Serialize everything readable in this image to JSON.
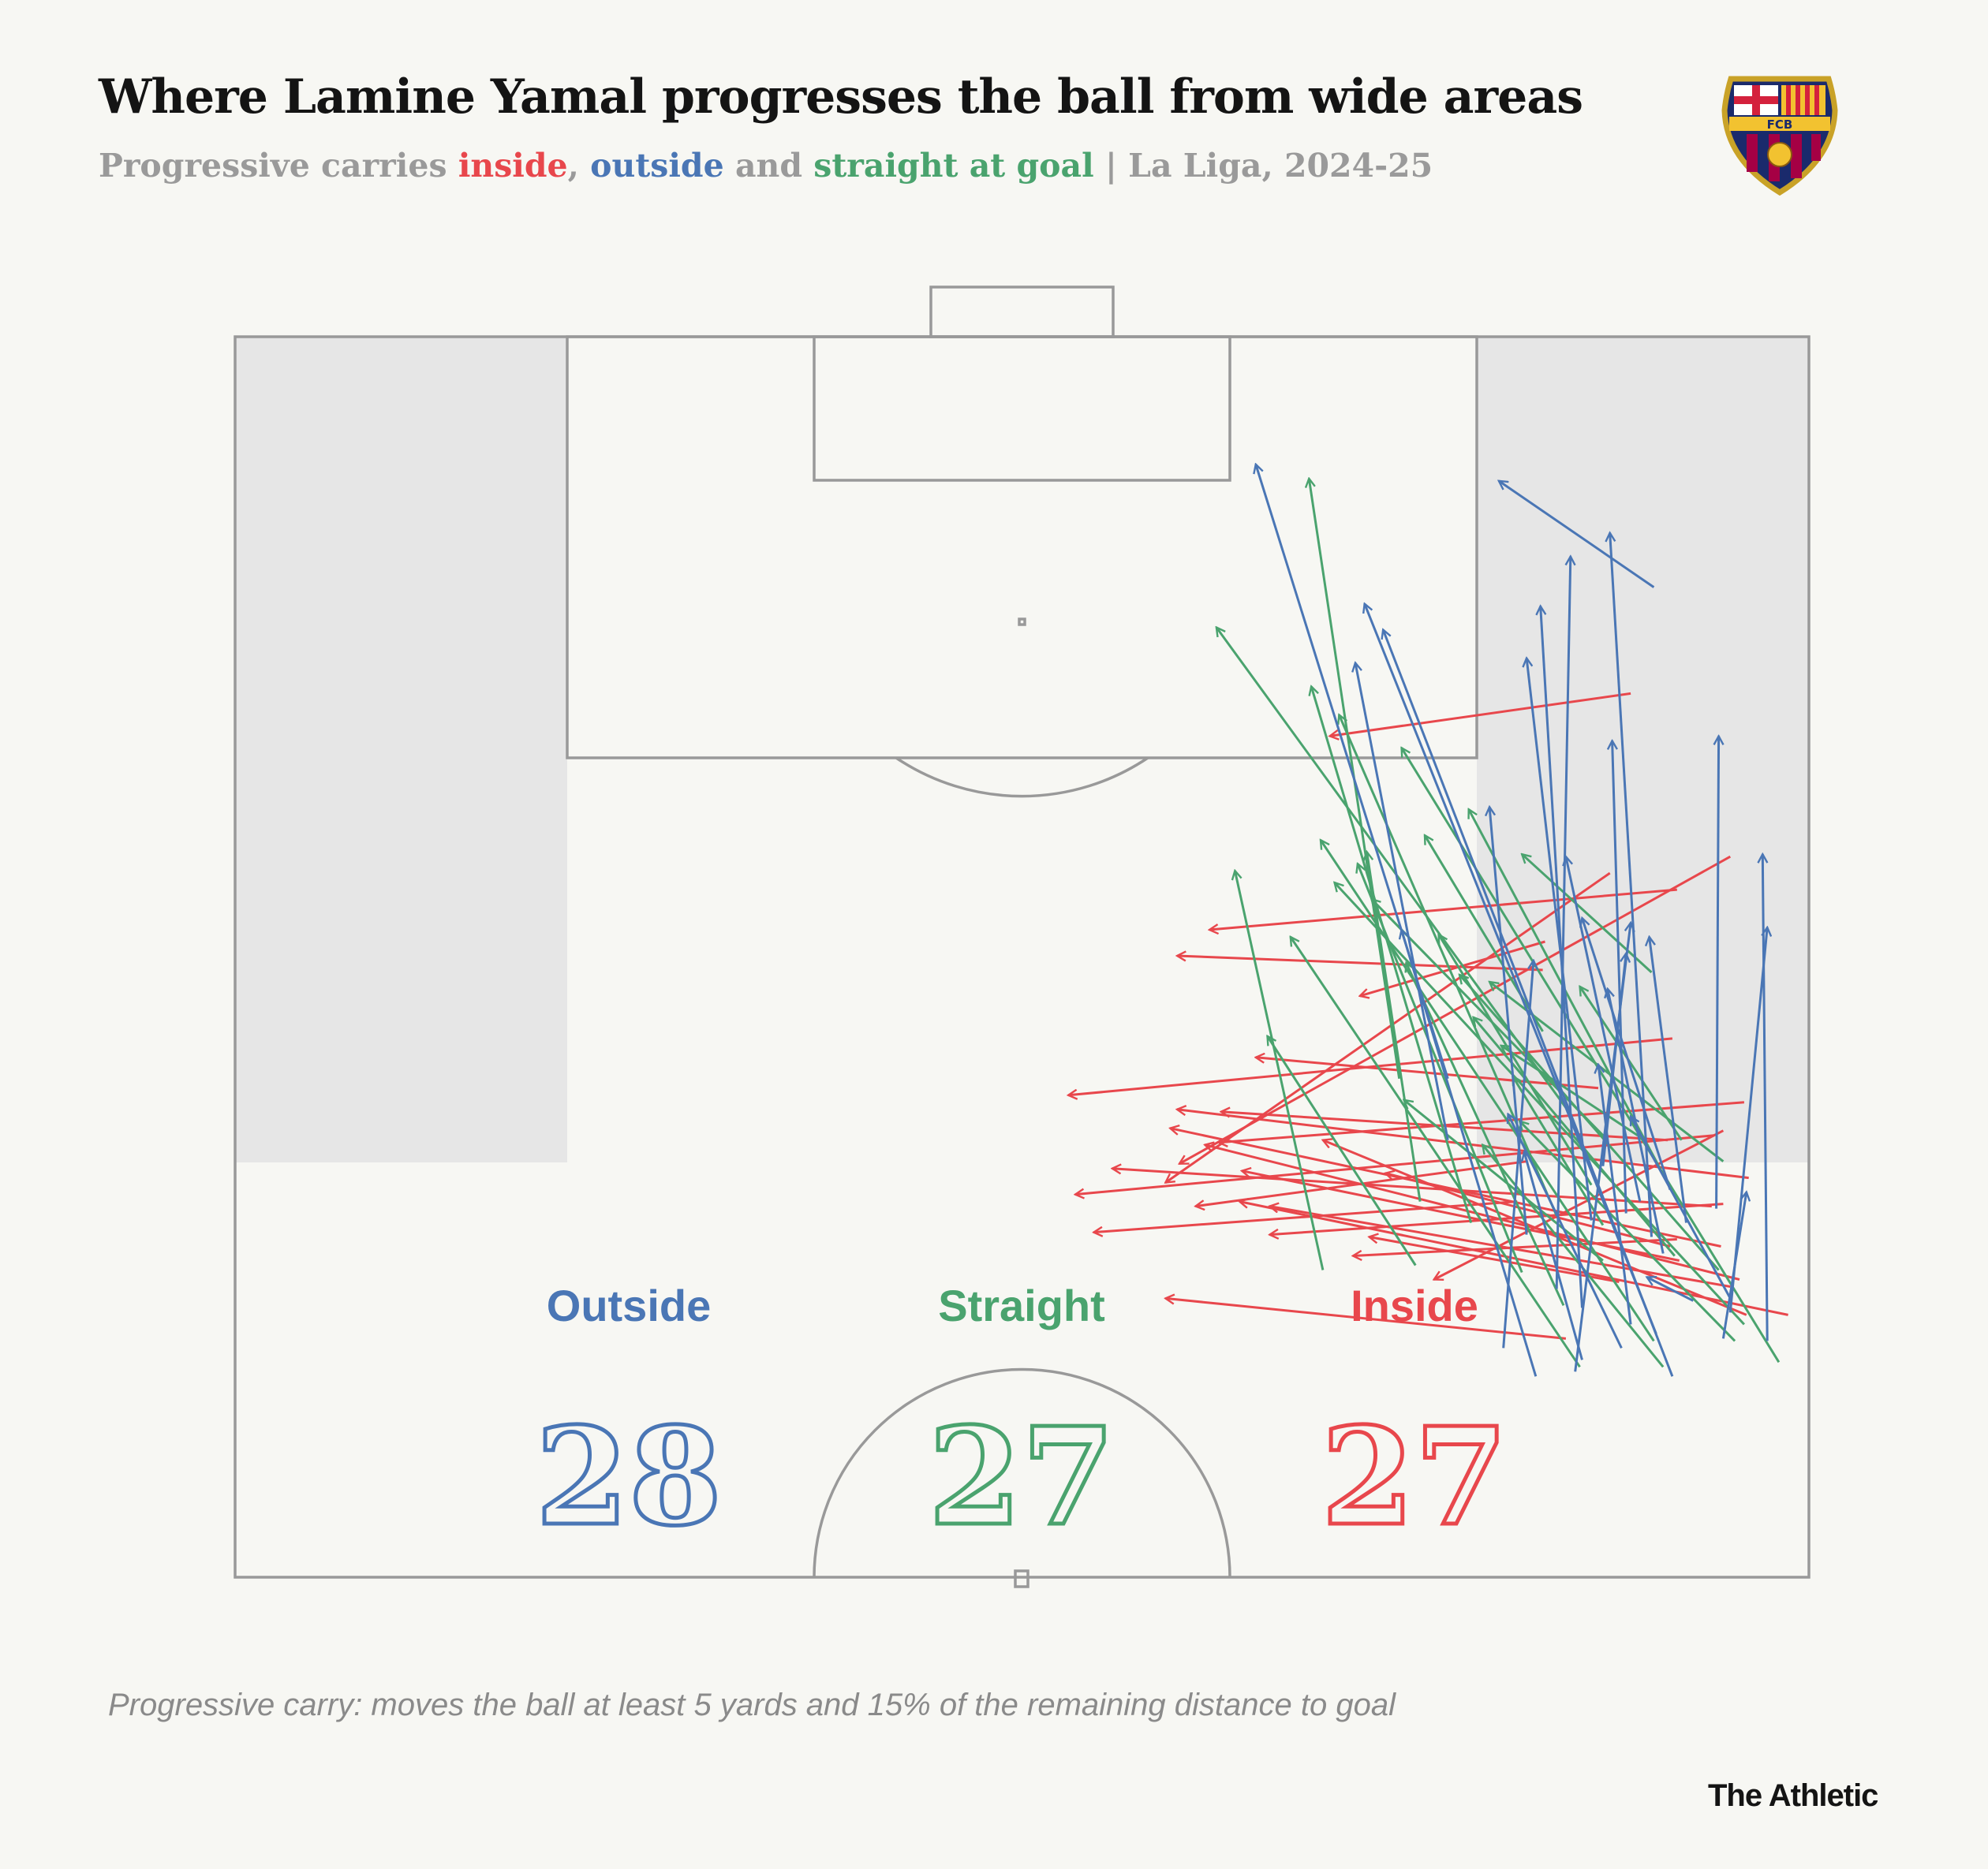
{
  "title": "Where Lamine Yamal progresses the ball from wide areas",
  "subtitle": {
    "prefix": "Progressive carries ",
    "inside": "inside",
    "sep1": ", ",
    "outside": "outside",
    "sep2": " and ",
    "straight": "straight at goal",
    "suffix": " | La Liga, 2024-25"
  },
  "crest_text": "FCB",
  "footnote": "Progressive carry: moves the ball at least 5 yards and 15% of the remaining distance to goal",
  "brand": "The Athletic",
  "colors": {
    "inside": "#e8474c",
    "outside": "#4a76b5",
    "straight": "#4aa36e",
    "pitch_line": "#999999",
    "wide_zone": "#e6e6e6",
    "background": "#f7f7f3"
  },
  "chart_data": {
    "type": "flow-map",
    "title": "Where Lamine Yamal progresses the ball from wide areas",
    "pitch": {
      "length": 105,
      "width": 68,
      "view": "attacking half, goal at top"
    },
    "note": "Coordinates: x = metres from attacking goal line (0 = goal line), y = metres from left touchline (left to right as drawn)",
    "legend": [
      "Outside",
      "Straight",
      "Inside"
    ],
    "totals": {
      "outside": 28,
      "straight": 27,
      "inside": 27
    },
    "carries": {
      "outside": [
        [
          40.8,
          63.0,
          39.8,
          61.0
        ],
        [
          38.1,
          61.2,
          8.3,
          59.4
        ],
        [
          36.6,
          60.7,
          22.0,
          57.5
        ],
        [
          36.9,
          64.0,
          16.9,
          64.1
        ],
        [
          42.5,
          66.2,
          21.9,
          66.0
        ],
        [
          41.3,
          64.6,
          25.0,
          66.2
        ],
        [
          41.8,
          60.3,
          30.8,
          58.9
        ],
        [
          42.2,
          61.4,
          11.3,
          48.8
        ],
        [
          44.0,
          62.1,
          12.4,
          49.6
        ],
        [
          36.1,
          62.0,
          24.6,
          58.2
        ],
        [
          41.1,
          58.2,
          11.4,
          56.4
        ],
        [
          44.0,
          56.2,
          25.1,
          50.4
        ],
        [
          42.8,
          59.9,
          32.9,
          55.0
        ],
        [
          40.3,
          57.1,
          9.3,
          57.7
        ],
        [
          43.8,
          57.9,
          24.8,
          60.3
        ],
        [
          31.4,
          52.4,
          5.4,
          44.1
        ],
        [
          37.4,
          58.6,
          13.6,
          55.8
        ],
        [
          34.0,
          52.4,
          13.8,
          48.4
        ],
        [
          37.1,
          60.1,
          17.1,
          59.5
        ],
        [
          43.3,
          58.2,
          34.5,
          55.7
        ],
        [
          38.0,
          55.8,
          19.9,
          54.2
        ],
        [
          42.8,
          54.8,
          26.4,
          56.1
        ],
        [
          40.7,
          64.6,
          33.0,
          60.3
        ],
        [
          37.5,
          62.7,
          25.4,
          61.1
        ],
        [
          38.8,
          61.7,
          27.6,
          59.3
        ],
        [
          10.6,
          61.3,
          6.1,
          54.6
        ],
        [
          35.1,
          59.1,
          26.1,
          60.1
        ],
        [
          42.4,
          64.3,
          36.2,
          65.3
        ]
      ],
      "straight": [
        [
          33.8,
          60.6,
          30.0,
          54.7
        ],
        [
          36.6,
          51.2,
          21.8,
          48.9
        ],
        [
          31.4,
          50.3,
          6.0,
          46.4
        ],
        [
          39.5,
          47.0,
          22.6,
          43.2
        ],
        [
          37.5,
          53.4,
          14.8,
          46.5
        ],
        [
          39.6,
          55.6,
          22.3,
          48.5
        ],
        [
          37.2,
          57.1,
          16.0,
          47.7
        ],
        [
          32.9,
          57.7,
          12.3,
          42.4
        ],
        [
          36.0,
          62.0,
          20.0,
          53.3
        ],
        [
          43.6,
          58.1,
          25.4,
          45.6
        ],
        [
          39.1,
          59.1,
          32.3,
          50.5
        ],
        [
          41.0,
          57.4,
          26.5,
          50.6
        ],
        [
          42.5,
          61.3,
          21.3,
          46.9
        ],
        [
          41.8,
          65.2,
          23.1,
          47.5
        ],
        [
          37.6,
          59.1,
          31.3,
          55.2
        ],
        [
          43.4,
          66.7,
          17.4,
          50.4
        ],
        [
          34.9,
          64.3,
          27.3,
          54.2
        ],
        [
          39.5,
          64.1,
          27.0,
          52.9
        ],
        [
          34.0,
          59.3,
          23.8,
          49.1
        ],
        [
          38.9,
          62.2,
          28.8,
          53.5
        ],
        [
          26.9,
          61.2,
          21.9,
          55.6
        ],
        [
          39.3,
          51.0,
          29.6,
          44.6
        ],
        [
          35.9,
          58.6,
          25.3,
          52.0
        ],
        [
          43.6,
          61.7,
          34.2,
          53.9
        ],
        [
          42.5,
          64.8,
          33.2,
          55.5
        ],
        [
          29.4,
          56.5,
          21.1,
          51.4
        ],
        [
          34.0,
          62.5,
          27.5,
          58.1
        ]
      ],
      "inside": [
        [
          15.1,
          60.3,
          16.9,
          47.3
        ],
        [
          23.4,
          62.3,
          25.1,
          42.1
        ],
        [
          22.0,
          64.6,
          35.0,
          40.8
        ],
        [
          36.6,
          55.4,
          37.9,
          37.1
        ],
        [
          33.8,
          63.9,
          36.3,
          36.3
        ],
        [
          29.7,
          62.1,
          32.1,
          36.0
        ],
        [
          35.6,
          65.4,
          32.7,
          40.7
        ],
        [
          39.1,
          62.4,
          35.3,
          43.5
        ],
        [
          32.4,
          65.2,
          34.1,
          42.5
        ],
        [
          36.8,
          63.8,
          35.2,
          37.9
        ],
        [
          31.8,
          58.9,
          30.5,
          44.1
        ],
        [
          26.8,
          56.5,
          26.2,
          40.7
        ],
        [
          41.4,
          67.1,
          36.6,
          43.4
        ],
        [
          38.5,
          64.2,
          33.5,
          40.4
        ],
        [
          34.0,
          61.9,
          32.8,
          42.6
        ],
        [
          38.5,
          62.0,
          35.4,
          49.7
        ],
        [
          41.4,
          65.3,
          34.0,
          47.0
        ],
        [
          33.6,
          64.3,
          39.9,
          51.8
        ],
        [
          34.9,
          55.8,
          36.8,
          41.5
        ],
        [
          22.7,
          59.4,
          35.8,
          40.2
        ],
        [
          38.2,
          62.3,
          38.9,
          48.3
        ],
        [
          36.7,
          64.3,
          38.0,
          44.7
        ],
        [
          40.2,
          64.6,
          36.8,
          44.7
        ],
        [
          40.0,
          59.8,
          38.1,
          49.0
        ],
        [
          25.6,
          56.6,
          27.9,
          48.6
        ],
        [
          39.9,
          65.0,
          34.2,
          41.9
        ],
        [
          42.4,
          57.5,
          40.7,
          40.2
        ]
      ]
    },
    "labels": {
      "outside": "Outside",
      "straight": "Straight",
      "inside": "Inside",
      "outside_count": "28",
      "straight_count": "27",
      "inside_count": "27"
    }
  }
}
